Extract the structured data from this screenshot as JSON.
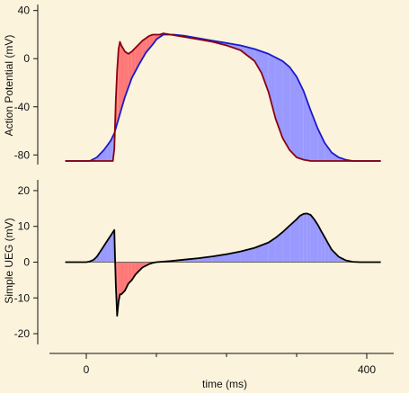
{
  "chart_data": [
    {
      "type": "line",
      "ylabel": "Action Potential (mV)",
      "ylim": [
        -88,
        45
      ],
      "yticks": [
        -80,
        -40,
        0,
        40
      ],
      "colors": {
        "cell_a": "#1a1acc",
        "cell_b": "#8b0010",
        "fill_a_leads": "#9999ff",
        "fill_b_leads": "#ff7777"
      },
      "series": [
        {
          "name": "",
          "color": "#1a1acc",
          "x": [
            -30,
            5,
            15,
            25,
            30,
            35,
            40,
            45,
            50,
            55,
            60,
            65,
            75,
            85,
            95,
            100,
            105,
            110,
            115,
            120,
            125,
            140,
            160,
            180,
            200,
            220,
            240,
            260,
            280,
            290,
            300,
            310,
            320,
            330,
            340,
            350,
            360,
            370,
            380,
            390,
            400,
            410,
            420
          ],
          "y": [
            -85,
            -85,
            -82,
            -76,
            -72,
            -68,
            -62,
            -52,
            -42,
            -32,
            -24,
            -16,
            -5,
            5,
            12,
            16,
            18,
            20,
            20,
            20,
            20,
            19,
            17,
            15,
            13,
            11,
            8,
            4,
            -2,
            -7,
            -15,
            -27,
            -43,
            -58,
            -70,
            -78,
            -82,
            -84,
            -85,
            -85,
            -85,
            -85,
            -85
          ]
        },
        {
          "name": "",
          "color": "#8b0010",
          "x": [
            -30,
            5,
            25,
            38,
            40,
            42,
            44,
            46,
            48,
            50,
            55,
            60,
            65,
            70,
            75,
            80,
            85,
            90,
            95,
            100,
            105,
            110,
            120,
            140,
            160,
            180,
            200,
            220,
            240,
            250,
            260,
            270,
            280,
            290,
            300,
            310,
            320,
            330,
            340,
            360,
            380,
            420
          ],
          "y": [
            -85,
            -85,
            -85,
            -85,
            -75,
            -35,
            -10,
            8,
            14,
            11,
            6,
            4,
            6,
            9,
            12,
            15,
            17,
            19,
            20,
            20,
            20,
            21,
            20,
            18,
            16,
            14,
            11,
            7,
            -2,
            -12,
            -28,
            -50,
            -66,
            -76,
            -82,
            -84,
            -85,
            -85,
            -85,
            -85,
            -85,
            -85
          ]
        }
      ]
    },
    {
      "type": "line",
      "xlabel": "time (ms)",
      "ylabel": "Simple UEG (mV)",
      "xlim": [
        -50,
        450
      ],
      "ylim": [
        -23,
        23
      ],
      "xticks": [
        0,
        400
      ],
      "yticks": [
        -20,
        -10,
        0,
        10,
        20
      ],
      "x_minor_ticks": [
        100,
        200,
        300
      ],
      "series": [
        {
          "name": "",
          "color": "#000000",
          "x": [
            -30,
            0,
            5,
            10,
            15,
            20,
            25,
            30,
            35,
            40,
            41,
            42,
            44,
            46,
            48,
            50,
            55,
            60,
            65,
            70,
            75,
            80,
            85,
            90,
            95,
            100,
            120,
            140,
            160,
            180,
            200,
            220,
            240,
            260,
            270,
            280,
            290,
            300,
            305,
            310,
            315,
            320,
            325,
            330,
            335,
            340,
            345,
            350,
            360,
            370,
            380,
            390,
            400,
            420
          ],
          "y": [
            0,
            0,
            0.2,
            0.6,
            1.5,
            3,
            4.5,
            6,
            7.5,
            9,
            1,
            -6,
            -15,
            -11,
            -9,
            -9,
            -8,
            -6,
            -5,
            -3.5,
            -2.5,
            -1.5,
            -1,
            -0.5,
            -0.2,
            0,
            0.3,
            0.7,
            1.1,
            1.6,
            2.2,
            3,
            4,
            5.5,
            6.8,
            8.4,
            10.2,
            12,
            13,
            13.5,
            13.6,
            13.2,
            12,
            10.5,
            8.7,
            7,
            5.2,
            3.5,
            1.5,
            0.5,
            0.1,
            0,
            0,
            0
          ]
        }
      ]
    }
  ]
}
